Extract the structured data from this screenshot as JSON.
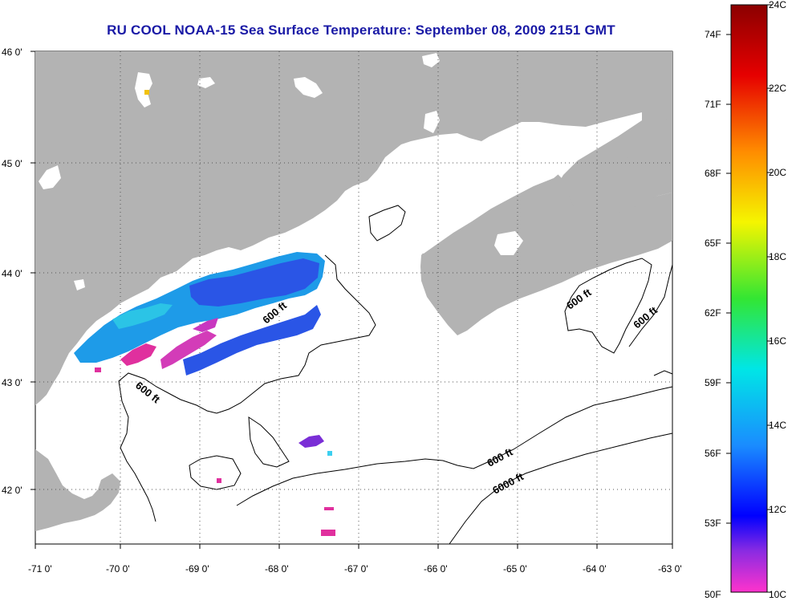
{
  "title": "RU COOL  NOAA-15  Sea Surface Temperature:  September 08, 2009 2151 GMT",
  "colors": {
    "land": "#b3b3b3",
    "grid": "#555555",
    "frame": "#000000"
  },
  "map": {
    "lat_ticks": [
      "46 0'",
      "45 0'",
      "44 0'",
      "43 0'",
      "42 0'"
    ],
    "lon_ticks": [
      "-71 0'",
      "-70 0'",
      "-69 0'",
      "-68 0'",
      "-67 0'",
      "-66 0'",
      "-65 0'",
      "-64 0'",
      "-63 0'"
    ],
    "contour_labels": [
      "600 ft",
      "600 ft",
      "600 ft",
      "600 ft",
      "600 ft",
      "6000 ft"
    ]
  },
  "colorbar": {
    "fahrenheit_labels": [
      "74F",
      "71F",
      "68F",
      "65F",
      "62F",
      "59F",
      "56F",
      "53F",
      "50F"
    ],
    "celsius_labels": [
      "24C",
      "22C",
      "20C",
      "18C",
      "16C",
      "14C",
      "12C",
      "10C"
    ]
  }
}
